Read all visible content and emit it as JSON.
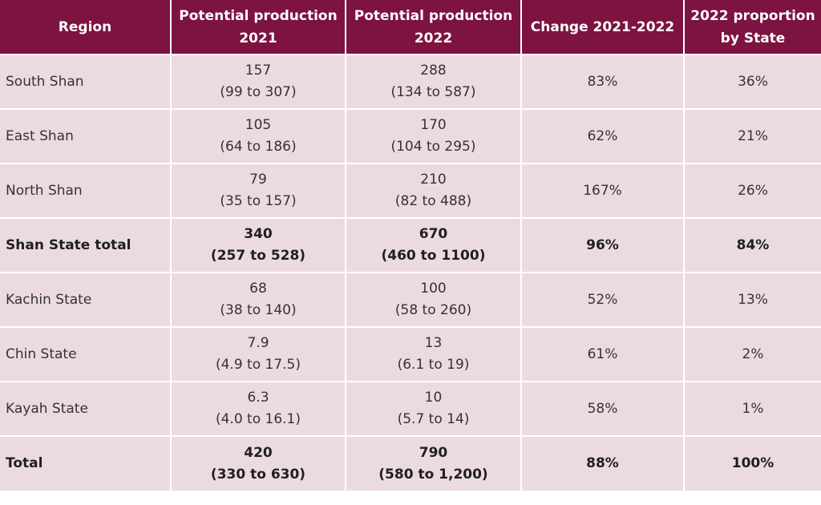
{
  "table": {
    "headers": {
      "region": "Region",
      "prod2021": [
        "Potential production",
        "2021"
      ],
      "prod2022": [
        "Potential production",
        "2022"
      ],
      "change": "Change 2021-2022",
      "proportion": [
        "2022 proportion",
        "by State"
      ]
    },
    "rows": [
      {
        "region": "South Shan",
        "prod2021": "157",
        "range2021": "(99 to 307)",
        "prod2022": "288",
        "range2022": "(134 to 587)",
        "change": "83%",
        "proportion": "36%",
        "bold": false
      },
      {
        "region": "East Shan",
        "prod2021": "105",
        "range2021": "(64 to 186)",
        "prod2022": "170",
        "range2022": "(104 to 295)",
        "change": "62%",
        "proportion": "21%",
        "bold": false
      },
      {
        "region": "North Shan",
        "prod2021": "79",
        "range2021": "(35 to 157)",
        "prod2022": "210",
        "range2022": "(82 to 488)",
        "change": "167%",
        "proportion": "26%",
        "bold": false
      },
      {
        "region": "Shan State total",
        "prod2021": "340",
        "range2021": "(257 to 528)",
        "prod2022": "670",
        "range2022": "(460 to 1100)",
        "change": "96%",
        "proportion": "84%",
        "bold": true
      },
      {
        "region": "Kachin State",
        "prod2021": "68",
        "range2021": "(38 to 140)",
        "prod2022": "100",
        "range2022": "(58 to 260)",
        "change": "52%",
        "proportion": "13%",
        "bold": false
      },
      {
        "region": "Chin State",
        "prod2021": "7.9",
        "range2021": "(4.9 to 17.5)",
        "prod2022": "13",
        "range2022": "(6.1 to 19)",
        "change": "61%",
        "proportion": "2%",
        "bold": false
      },
      {
        "region": "Kayah State",
        "prod2021": "6.3",
        "range2021": "(4.0 to 16.1)",
        "prod2022": "10",
        "range2022": "(5.7 to 14)",
        "change": "58%",
        "proportion": "1%",
        "bold": false
      },
      {
        "region": "Total",
        "prod2021": "420",
        "range2021": "(330 to 630)",
        "prod2022": "790",
        "range2022": "(580 to 1,200)",
        "change": "88%",
        "proportion": "100%",
        "bold": true
      }
    ]
  },
  "colors": {
    "header_bg": "#7d1340",
    "header_text": "#ffffff",
    "cell_bg": "#ecdae2",
    "cell_text": "#333333"
  }
}
